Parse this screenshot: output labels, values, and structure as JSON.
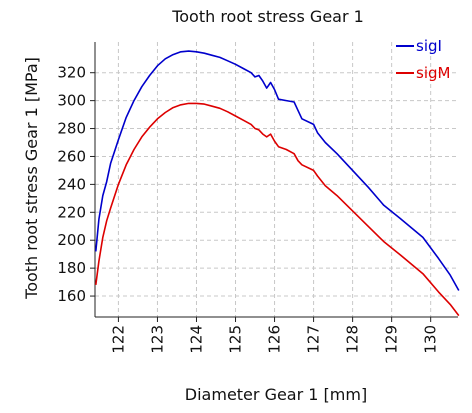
{
  "chart_data": {
    "type": "line",
    "title": "Tooth root stress Gear 1",
    "xlabel": "Diameter Gear 1 [mm]",
    "ylabel": "Tooth root stress Gear 1 [MPa]",
    "xlim": [
      121.4,
      130.7
    ],
    "ylim": [
      145,
      342
    ],
    "xticks": [
      122,
      123,
      124,
      125,
      126,
      127,
      128,
      129,
      130
    ],
    "yticks": [
      160,
      180,
      200,
      220,
      240,
      260,
      280,
      300,
      320
    ],
    "grid": true,
    "legend_position": "top-right",
    "series": [
      {
        "name": "sigI",
        "color": "#0000cc",
        "points": [
          [
            121.42,
            192
          ],
          [
            121.5,
            215
          ],
          [
            121.6,
            232
          ],
          [
            121.7,
            242
          ],
          [
            121.8,
            255
          ],
          [
            122.0,
            272
          ],
          [
            122.2,
            288
          ],
          [
            122.4,
            300
          ],
          [
            122.6,
            310
          ],
          [
            122.8,
            318
          ],
          [
            123.0,
            325
          ],
          [
            123.2,
            330
          ],
          [
            123.4,
            333
          ],
          [
            123.6,
            335
          ],
          [
            123.8,
            335.5
          ],
          [
            124.0,
            335
          ],
          [
            124.2,
            334
          ],
          [
            124.4,
            332.5
          ],
          [
            124.6,
            331
          ],
          [
            124.8,
            328.5
          ],
          [
            125.0,
            326
          ],
          [
            125.2,
            323
          ],
          [
            125.4,
            320
          ],
          [
            125.5,
            317
          ],
          [
            125.6,
            318
          ],
          [
            125.7,
            314
          ],
          [
            125.8,
            309
          ],
          [
            125.9,
            313
          ],
          [
            126.0,
            308
          ],
          [
            126.1,
            301
          ],
          [
            126.3,
            300
          ],
          [
            126.5,
            299
          ],
          [
            126.6,
            293
          ],
          [
            126.7,
            287
          ],
          [
            127.0,
            283
          ],
          [
            127.1,
            277
          ],
          [
            127.3,
            270
          ],
          [
            127.6,
            262
          ],
          [
            128.0,
            250
          ],
          [
            128.4,
            238
          ],
          [
            128.8,
            225
          ],
          [
            129.2,
            216
          ],
          [
            129.8,
            202
          ],
          [
            130.2,
            187
          ],
          [
            130.5,
            175
          ],
          [
            130.72,
            164
          ]
        ]
      },
      {
        "name": "sigM",
        "color": "#dd0000",
        "points": [
          [
            121.42,
            168
          ],
          [
            121.5,
            185
          ],
          [
            121.6,
            202
          ],
          [
            121.7,
            214
          ],
          [
            121.8,
            223
          ],
          [
            122.0,
            240
          ],
          [
            122.2,
            254
          ],
          [
            122.4,
            265
          ],
          [
            122.6,
            274
          ],
          [
            122.8,
            281
          ],
          [
            123.0,
            287
          ],
          [
            123.2,
            291.5
          ],
          [
            123.4,
            295
          ],
          [
            123.6,
            297
          ],
          [
            123.8,
            298
          ],
          [
            124.0,
            298
          ],
          [
            124.2,
            297.5
          ],
          [
            124.4,
            296
          ],
          [
            124.6,
            294.5
          ],
          [
            124.8,
            292
          ],
          [
            125.0,
            289
          ],
          [
            125.2,
            286
          ],
          [
            125.4,
            283
          ],
          [
            125.5,
            280
          ],
          [
            125.6,
            279
          ],
          [
            125.7,
            276
          ],
          [
            125.8,
            274
          ],
          [
            125.9,
            276
          ],
          [
            126.0,
            271
          ],
          [
            126.1,
            267
          ],
          [
            126.3,
            265
          ],
          [
            126.5,
            262
          ],
          [
            126.6,
            257
          ],
          [
            126.7,
            254
          ],
          [
            127.0,
            250
          ],
          [
            127.1,
            246
          ],
          [
            127.3,
            239
          ],
          [
            127.6,
            232
          ],
          [
            128.0,
            221
          ],
          [
            128.4,
            210
          ],
          [
            128.8,
            199
          ],
          [
            129.2,
            190
          ],
          [
            129.8,
            176
          ],
          [
            130.2,
            163
          ],
          [
            130.5,
            154
          ],
          [
            130.72,
            146
          ]
        ]
      }
    ]
  }
}
